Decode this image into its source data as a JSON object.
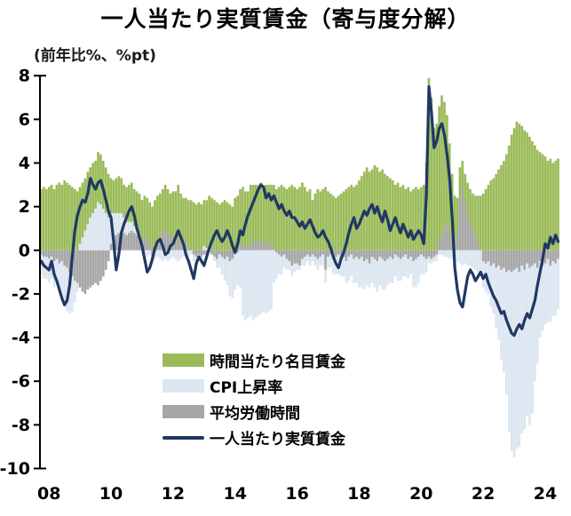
{
  "title": "一人当たり実質賃金（寄与度分解）",
  "chart_data": {
    "type": "bar",
    "subtype": "stacked-monthly-bars-with-line-overlay",
    "title": "一人当たり実質賃金（寄与度分解）",
    "unit_label": "(前年比%、%pt)",
    "frequency": "monthly",
    "x_start": "2007-10",
    "x_end": "2024-06",
    "ylim": [
      -10,
      8
    ],
    "yticks": [
      8,
      6,
      4,
      2,
      0,
      -2,
      -4,
      -6,
      -8,
      -10
    ],
    "xtick_labels": [
      "08",
      "10",
      "12",
      "14",
      "16",
      "18",
      "20",
      "22",
      "24"
    ],
    "grid": false,
    "legend_position": "inside-lower-left",
    "colors": {
      "nominal_wage": "#9BBB59",
      "cpi": "#DCE6F1",
      "hours": "#A6A6A6",
      "real_wage_line": "#1F3864",
      "axis": "#000000"
    },
    "legend": [
      {
        "key": "nominal_wage",
        "label": "時間当たり名目賃金",
        "type": "bar"
      },
      {
        "key": "cpi",
        "label": "CPI上昇率",
        "type": "bar"
      },
      {
        "key": "hours",
        "label": "平均労働時間",
        "type": "bar"
      },
      {
        "key": "real_wage_line",
        "label": "一人当たり実質賃金",
        "type": "line"
      }
    ],
    "series": [
      {
        "name": "時間当たり名目賃金",
        "key": "nominal_wage",
        "type": "bar",
        "values": [
          2.8,
          2.9,
          2.8,
          2.9,
          3.0,
          2.8,
          3.0,
          3.1,
          3.0,
          3.2,
          3.1,
          3.0,
          2.9,
          2.8,
          2.7,
          2.6,
          2.5,
          2.4,
          2.4,
          2.3,
          2.3,
          2.2,
          2.3,
          2.3,
          2.2,
          2.1,
          2.0,
          1.6,
          1.5,
          1.6,
          1.7,
          1.6,
          1.5,
          1.6,
          1.7,
          1.8,
          1.7,
          1.8,
          1.9,
          1.8,
          1.9,
          2.0,
          1.9,
          2.0,
          2.1,
          2.0,
          1.9,
          2.0,
          2.1,
          2.0,
          1.9,
          2.2,
          2.3,
          2.4,
          2.3,
          2.2,
          2.1,
          2.2,
          2.3,
          2.2,
          2.1,
          2.2,
          2.1,
          2.1,
          2.2,
          2.3,
          2.4,
          2.3,
          2.2,
          2.1,
          2.2,
          2.3,
          2.2,
          2.1,
          2.0,
          2.4,
          2.5,
          2.6,
          2.6,
          2.5,
          2.6,
          2.7,
          2.6,
          2.5,
          2.6,
          2.7,
          2.6,
          2.6,
          2.7,
          2.8,
          2.9,
          2.8,
          2.9,
          3.0,
          2.9,
          2.8,
          2.9,
          3.0,
          2.9,
          2.8,
          2.9,
          3.1,
          2.9,
          2.7,
          2.8,
          2.3,
          2.6,
          2.8,
          2.7,
          2.8,
          2.9,
          2.7,
          2.6,
          2.5,
          2.4,
          2.5,
          2.6,
          2.7,
          2.8,
          2.9,
          3.0,
          2.9,
          3.0,
          3.2,
          3.4,
          3.6,
          3.8,
          3.6,
          3.7,
          3.9,
          3.8,
          3.6,
          3.7,
          3.5,
          3.4,
          3.3,
          3.2,
          3.0,
          3.1,
          2.9,
          3.0,
          2.8,
          2.9,
          2.7,
          2.8,
          2.9,
          2.8,
          2.9,
          3.0,
          4.0,
          7.9,
          7.0,
          5.6,
          5.8,
          6.2,
          6.3,
          5.8,
          5.0,
          4.0,
          3.0,
          2.2,
          1.6,
          1.4,
          1.2,
          1.3,
          1.5,
          1.6,
          1.7,
          1.9,
          2.2,
          2.4,
          2.6,
          2.8,
          3.0,
          3.2,
          3.3,
          3.5,
          3.7,
          3.9,
          4.1,
          4.4,
          4.8,
          5.3,
          5.6,
          5.9,
          5.8,
          5.7,
          5.5,
          5.4,
          5.2,
          5.0,
          4.8,
          4.6,
          4.5,
          4.4,
          4.3,
          4.1,
          4.2,
          4.0,
          4.1,
          4.2
        ]
      },
      {
        "name": "CPI上昇率",
        "key": "cpi",
        "type": "bar",
        "values": [
          -0.9,
          -1.0,
          -1.0,
          -1.1,
          -1.0,
          -1.2,
          -1.1,
          -1.3,
          -1.6,
          -1.9,
          -2.0,
          -1.9,
          -1.6,
          -1.0,
          -0.4,
          0.3,
          0.6,
          0.9,
          1.2,
          1.5,
          1.7,
          1.9,
          2.2,
          2.1,
          1.9,
          1.7,
          1.5,
          1.4,
          1.2,
          1.0,
          0.9,
          0.8,
          0.7,
          0.6,
          0.5,
          0.4,
          0.3,
          0.2,
          0.1,
          -0.1,
          -0.2,
          -0.3,
          -0.2,
          -0.3,
          -0.4,
          -0.3,
          -0.4,
          -0.5,
          -0.4,
          -0.5,
          -0.4,
          -0.3,
          -0.4,
          -0.5,
          -0.4,
          -0.3,
          -0.4,
          -0.3,
          -0.2,
          -0.3,
          -0.2,
          -0.3,
          -0.2,
          0.2,
          0.1,
          0.2,
          0.0,
          -0.2,
          -0.4,
          -0.6,
          -0.8,
          -1.0,
          -1.3,
          -1.6,
          -1.8,
          -1.6,
          -1.5,
          -1.7,
          -3.0,
          -3.2,
          -3.1,
          -3.0,
          -3.2,
          -3.1,
          -3.0,
          -2.9,
          -2.8,
          -2.9,
          -2.8,
          -2.7,
          -1.5,
          -1.2,
          -0.9,
          -0.8,
          -0.6,
          -0.5,
          -0.4,
          -0.5,
          -0.4,
          -0.3,
          -0.2,
          -0.3,
          -0.4,
          -0.3,
          -0.4,
          -0.3,
          -0.4,
          -0.5,
          -0.4,
          -0.5,
          -0.6,
          -0.5,
          -0.6,
          -0.7,
          -0.8,
          -0.9,
          -0.8,
          -0.9,
          -1.0,
          -1.1,
          -1.0,
          -1.1,
          -1.2,
          -1.3,
          -1.4,
          -1.3,
          -1.2,
          -1.1,
          -1.2,
          -1.3,
          -1.4,
          -1.3,
          -1.4,
          -1.3,
          -1.2,
          -1.2,
          -1.1,
          -1.0,
          -1.1,
          -1.0,
          -0.9,
          -1.0,
          -0.9,
          -0.8,
          -1.2,
          -1.3,
          -1.2,
          -0.9,
          -0.8,
          -0.6,
          -0.3,
          -0.2,
          -0.2,
          -0.3,
          -0.2,
          -0.2,
          -0.3,
          -0.3,
          -0.4,
          -0.4,
          -0.5,
          -0.5,
          -0.6,
          -0.7,
          -0.6,
          -0.7,
          -0.7,
          -0.8,
          -0.9,
          -1.0,
          -1.1,
          -1.2,
          -1.3,
          -1.5,
          -1.9,
          -2.3,
          -2.8,
          -3.4,
          -4.1,
          -4.8,
          -5.6,
          -7.4,
          -8.2,
          -8.6,
          -8.3,
          -8.0,
          -7.7,
          -7.3,
          -7.0,
          -7.2,
          -6.8,
          -5.4,
          -4.4,
          -3.5,
          -3.0,
          -2.8,
          -2.9,
          -2.6,
          -2.5,
          -2.4,
          -2.3
        ]
      },
      {
        "name": "平均労働時間",
        "key": "hours",
        "type": "bar",
        "values": [
          -0.2,
          -0.3,
          -0.3,
          -0.4,
          -0.3,
          -0.5,
          -0.4,
          -0.6,
          -0.5,
          -0.7,
          -0.8,
          -1.0,
          -1.2,
          -1.4,
          -1.5,
          -1.7,
          -1.9,
          -2.0,
          -1.8,
          -1.7,
          -1.6,
          -1.5,
          -1.6,
          -1.4,
          -1.2,
          -0.9,
          -0.5,
          0.3,
          0.5,
          0.7,
          0.8,
          0.9,
          0.8,
          0.7,
          0.8,
          0.9,
          0.8,
          0.7,
          0.6,
          0.5,
          0.6,
          0.4,
          0.3,
          -0.3,
          0.2,
          0.5,
          0.7,
          0.8,
          0.9,
          0.8,
          0.7,
          0.5,
          0.4,
          0.6,
          0.3,
          0.2,
          0.3,
          0.1,
          0.0,
          -0.2,
          -0.3,
          -0.2,
          -0.3,
          -0.2,
          -0.3,
          -0.1,
          -0.2,
          -0.3,
          -0.4,
          -0.2,
          -0.3,
          -0.4,
          -0.3,
          -0.5,
          -0.4,
          -0.2,
          -0.1,
          0.2,
          0.3,
          0.2,
          0.1,
          0.3,
          0.4,
          0.5,
          0.4,
          0.4,
          0.3,
          0.4,
          0.3,
          0.2,
          0.1,
          -0.1,
          -0.2,
          -0.3,
          -0.2,
          -0.4,
          -0.5,
          -0.7,
          -0.6,
          -0.6,
          -0.7,
          -0.4,
          -0.3,
          -0.2,
          -0.3,
          -0.2,
          -0.3,
          -0.4,
          -0.3,
          -0.2,
          -0.9,
          -0.3,
          -0.2,
          -0.4,
          -0.3,
          -0.2,
          -0.4,
          -0.3,
          -0.5,
          -0.3,
          -0.2,
          -0.4,
          -0.3,
          -0.4,
          -0.3,
          -0.5,
          -0.4,
          -0.6,
          -0.3,
          -0.4,
          -0.5,
          -0.3,
          -0.4,
          -0.5,
          -0.4,
          -0.3,
          -0.4,
          -0.2,
          -0.3,
          -0.4,
          -0.3,
          -0.2,
          -0.4,
          -0.3,
          -0.5,
          -0.4,
          -0.3,
          -0.2,
          -0.3,
          -0.4,
          -0.3,
          -0.4,
          -0.3,
          -0.2,
          0.4,
          0.8,
          1.0,
          1.2,
          0.9,
          0.5,
          0.3,
          0.8,
          2.4,
          2.9,
          2.2,
          1.6,
          1.2,
          0.9,
          0.6,
          0.3,
          0.1,
          -0.5,
          -0.6,
          -0.5,
          -0.7,
          -0.6,
          -0.8,
          -0.7,
          -0.9,
          -0.8,
          -1.0,
          -0.9,
          -1.0,
          -0.9,
          -0.8,
          -1.0,
          -0.7,
          -0.9,
          -0.6,
          -0.8,
          -0.7,
          -0.6,
          -0.8,
          -0.5,
          -0.7,
          -0.6,
          -0.4,
          -0.7,
          -0.5,
          -0.6,
          -0.4
        ]
      },
      {
        "name": "一人当たり実質賃金",
        "key": "real_wage_line",
        "type": "line",
        "values": [
          -0.5,
          -0.7,
          -0.8,
          -0.9,
          -0.5,
          -1.1,
          -1.4,
          -1.8,
          -2.2,
          -2.5,
          -2.3,
          -1.6,
          -0.3,
          0.9,
          1.6,
          2.0,
          2.3,
          2.2,
          2.6,
          3.3,
          3.0,
          2.8,
          3.1,
          3.2,
          2.8,
          2.3,
          1.8,
          1.5,
          0.4,
          -0.9,
          -0.2,
          0.8,
          1.2,
          1.5,
          1.8,
          2.0,
          1.6,
          1.0,
          0.6,
          0.2,
          -0.4,
          -1.0,
          -0.8,
          -0.4,
          0.1,
          0.4,
          0.5,
          0.2,
          -0.2,
          -0.1,
          0.2,
          0.3,
          0.6,
          0.9,
          0.6,
          0.3,
          -0.2,
          -0.5,
          -0.9,
          -1.3,
          -0.6,
          -0.3,
          -0.5,
          -0.7,
          -0.3,
          0.1,
          0.4,
          0.7,
          0.9,
          0.6,
          0.4,
          0.6,
          0.9,
          0.6,
          0.2,
          -0.1,
          0.3,
          0.9,
          0.7,
          1.2,
          1.6,
          1.9,
          2.2,
          2.5,
          2.8,
          3.0,
          2.9,
          2.4,
          2.6,
          2.3,
          2.5,
          2.2,
          1.9,
          2.1,
          1.8,
          1.6,
          1.8,
          1.5,
          1.5,
          1.3,
          1.1,
          1.3,
          1.0,
          1.2,
          1.4,
          1.1,
          0.8,
          0.6,
          0.7,
          0.9,
          0.6,
          0.4,
          0.1,
          -0.3,
          -0.6,
          -0.8,
          -0.4,
          -0.1,
          0.3,
          0.8,
          1.2,
          1.5,
          1.0,
          1.2,
          1.5,
          1.8,
          1.6,
          1.9,
          2.1,
          1.7,
          2.0,
          1.6,
          1.3,
          1.8,
          1.4,
          0.9,
          1.2,
          1.5,
          1.1,
          0.8,
          1.2,
          0.9,
          0.6,
          0.9,
          0.5,
          0.7,
          0.9,
          0.7,
          0.3,
          2.5,
          7.5,
          6.3,
          4.7,
          5.0,
          5.6,
          5.8,
          5.3,
          4.4,
          3.3,
          1.5,
          -0.8,
          -1.8,
          -2.4,
          -2.6,
          -1.9,
          -1.2,
          -0.9,
          -1.1,
          -1.4,
          -1.2,
          -1.0,
          -1.3,
          -1.1,
          -1.5,
          -1.8,
          -2.1,
          -2.3,
          -2.6,
          -2.9,
          -2.8,
          -3.2,
          -3.5,
          -3.8,
          -3.9,
          -3.6,
          -3.4,
          -3.6,
          -3.2,
          -2.9,
          -3.1,
          -2.7,
          -2.3,
          -1.6,
          -1.0,
          -0.4,
          0.3,
          0.1,
          0.6,
          0.3,
          0.7,
          0.4
        ]
      }
    ]
  }
}
